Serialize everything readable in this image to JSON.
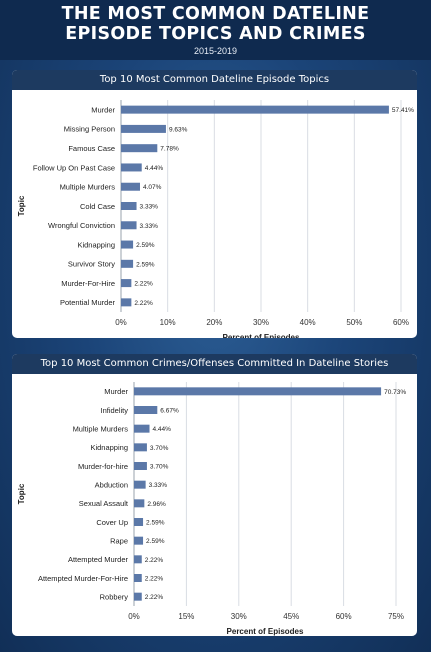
{
  "header": {
    "title_line1": "THE MOST COMMON DATELINE",
    "title_line2": "EPISODE TOPICS AND CRIMES",
    "subtitle": "2015-2019"
  },
  "colors": {
    "bar": "#5b78a8",
    "header_bg": "#0f2a4f",
    "card_title_bg": "#1d3a60",
    "grid": "#d9dde3"
  },
  "chart_data": [
    {
      "type": "bar",
      "orientation": "horizontal",
      "title": "Top 10 Most Common Dateline Episode Topics",
      "xlabel": "Percent of Episodes",
      "ylabel": "Topic",
      "xlim": [
        0,
        60
      ],
      "xticks": [
        "0%",
        "10%",
        "20%",
        "30%",
        "40%",
        "50%",
        "60%"
      ],
      "grid": true,
      "categories": [
        "Murder",
        "Missing Person",
        "Famous Case",
        "Follow Up On Past Case",
        "Multiple Murders",
        "Cold Case",
        "Wrongful Conviction",
        "Kidnapping",
        "Survivor Story",
        "Murder-For-Hire",
        "Potential Murder"
      ],
      "values": [
        57.41,
        9.63,
        7.78,
        4.44,
        4.07,
        3.33,
        3.33,
        2.59,
        2.59,
        2.22,
        2.22
      ],
      "value_labels": [
        "57.41%",
        "9.63%",
        "7.78%",
        "4.44%",
        "4.07%",
        "3.33%",
        "3.33%",
        "2.59%",
        "2.59%",
        "2.22%",
        "2.22%"
      ]
    },
    {
      "type": "bar",
      "orientation": "horizontal",
      "title": "Top 10 Most Common Crimes/Offenses Committed In Dateline Stories",
      "xlabel": "Percent of Episodes",
      "ylabel": "Topic",
      "xlim": [
        0,
        75
      ],
      "xticks": [
        "0%",
        "15%",
        "30%",
        "45%",
        "60%",
        "75%"
      ],
      "grid": true,
      "categories": [
        "Murder",
        "Infidelity",
        "Multiple Murders",
        "Kidnapping",
        "Murder-for-hire",
        "Abduction",
        "Sexual Assault",
        "Cover Up",
        "Rape",
        "Attempted Murder",
        "Attempted Murder-For-Hire",
        "Robbery"
      ],
      "values": [
        70.73,
        6.67,
        4.44,
        3.7,
        3.7,
        3.33,
        2.96,
        2.59,
        2.59,
        2.22,
        2.22,
        2.22
      ],
      "value_labels": [
        "70.73%",
        "6.67%",
        "4.44%",
        "3.70%",
        "3.70%",
        "3.33%",
        "2.96%",
        "2.59%",
        "2.59%",
        "2.22%",
        "2.22%",
        "2.22%"
      ]
    }
  ]
}
